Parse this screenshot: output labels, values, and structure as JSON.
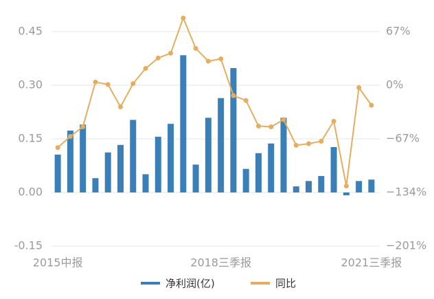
{
  "chart_data": {
    "type": "bar-line",
    "categories": [
      "2015中报",
      null,
      null,
      null,
      null,
      null,
      null,
      null,
      null,
      null,
      null,
      null,
      null,
      "2018三季报",
      null,
      null,
      null,
      null,
      null,
      null,
      null,
      null,
      null,
      null,
      null,
      "2021三季报"
    ],
    "series": [
      {
        "name": "净利润(亿)",
        "color": "#3b7fb9",
        "type": "bar",
        "values": [
          0.106,
          0.173,
          0.19,
          0.04,
          0.112,
          0.133,
          0.203,
          0.051,
          0.156,
          0.192,
          0.384,
          0.078,
          0.209,
          0.264,
          0.348,
          0.066,
          0.11,
          0.137,
          0.209,
          0.017,
          0.032,
          0.046,
          0.127,
          -0.008,
          0.032,
          0.036
        ]
      },
      {
        "name": "同比",
        "color": "#e5ad5e",
        "type": "line",
        "axis": "y2",
        "values": [
          -78,
          -64,
          -52,
          4,
          1,
          -27,
          2,
          21,
          34,
          40,
          84,
          46,
          30,
          33,
          -13,
          -19,
          -51,
          -52,
          -43,
          -75,
          -73,
          -70,
          -45,
          -126,
          -3,
          -25
        ]
      }
    ],
    "ylim": [
      -0.15,
      0.45
    ],
    "yticks": [
      -0.15,
      {
        "value": 0,
        "label": "0.00"
      },
      0.15,
      {
        "value": 0.3,
        "label": "0.30"
      },
      0.45
    ],
    "y2lim": [
      -201,
      67
    ],
    "y2ticks": [
      {
        "value": -201,
        "label": "−201%"
      },
      {
        "value": -134,
        "label": "−134%"
      },
      {
        "value": -67,
        "label": "−67%"
      },
      {
        "value": 0,
        "label": "0%"
      },
      {
        "value": 67,
        "label": "67%"
      }
    ],
    "grid": true
  }
}
